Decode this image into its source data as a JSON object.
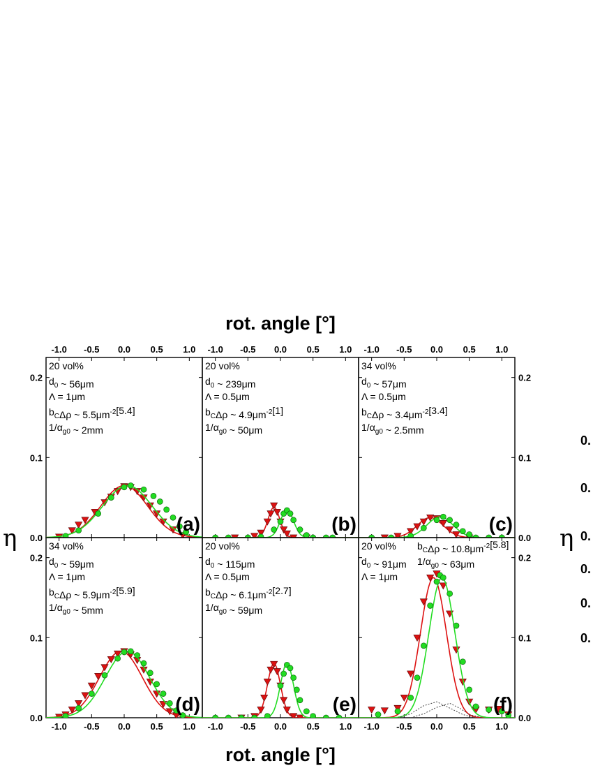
{
  "figure": {
    "top_xlabel": "rot. angle [°]",
    "bottom_xlabel": "rot. angle [°]",
    "left_ylabel": "η",
    "right_ylabel": "η",
    "cut_tick_labels": [
      "0.",
      "0.",
      "0.",
      "0.",
      "0.",
      "0."
    ]
  },
  "colors": {
    "red": "#dd1111",
    "green": "#22dd22",
    "frame": "#000000"
  },
  "chart_data": [
    {
      "id": "a",
      "type": "line",
      "panel_label": "(a)",
      "annotations": [
        "20 vol%",
        "d0 ~ 56μm",
        "Λ = 1μm",
        "bCΔρ ~ 5.5μm⁻²[5.4]",
        "1/αg0 ~ 2mm"
      ],
      "xlim": [
        -1.2,
        1.2
      ],
      "ylim": [
        0,
        0.225
      ],
      "x_ticks": [
        "-1.0",
        "-0.5",
        "0.0",
        "0.5",
        "1.0"
      ],
      "y_ticks": [
        "0.0",
        "0.1",
        "0.2"
      ],
      "series": [
        {
          "marker": "triangle",
          "color": "red",
          "points": [
            [
              -1.0,
              0.001
            ],
            [
              -0.8,
              0.009
            ],
            [
              -0.7,
              0.016
            ],
            [
              -0.6,
              0.022
            ],
            [
              -0.45,
              0.032
            ],
            [
              -0.3,
              0.044
            ],
            [
              -0.2,
              0.051
            ],
            [
              -0.1,
              0.058
            ],
            [
              0.0,
              0.064
            ],
            [
              0.1,
              0.063
            ],
            [
              0.2,
              0.058
            ],
            [
              0.3,
              0.05
            ],
            [
              0.4,
              0.04
            ],
            [
              0.5,
              0.03
            ],
            [
              0.6,
              0.02
            ],
            [
              0.75,
              0.01
            ],
            [
              0.9,
              0.003
            ]
          ],
          "fit": {
            "a": 0.065,
            "mu": 0.0,
            "sigma": 0.36
          }
        },
        {
          "marker": "circle",
          "color": "green",
          "points": [
            [
              -0.9,
              0.002
            ],
            [
              -0.7,
              0.009
            ],
            [
              -0.4,
              0.03
            ],
            [
              -0.2,
              0.05
            ],
            [
              0.0,
              0.063
            ],
            [
              0.1,
              0.065
            ],
            [
              0.3,
              0.06
            ],
            [
              0.45,
              0.052
            ],
            [
              0.55,
              0.045
            ],
            [
              0.65,
              0.035
            ],
            [
              0.75,
              0.025
            ],
            [
              0.85,
              0.014
            ],
            [
              0.95,
              0.007
            ]
          ],
          "fit": {
            "a": 0.065,
            "mu": 0.05,
            "sigma": 0.38
          }
        }
      ]
    },
    {
      "id": "b",
      "type": "line",
      "panel_label": "(b)",
      "annotations": [
        "20 vol%",
        "d0 ~ 239μm",
        "Λ = 0.5μm",
        "bCΔρ ~ 4.9μm⁻²[1]",
        "1/αg0 ~ 50μm"
      ],
      "xlim": [
        -1.2,
        1.2
      ],
      "ylim": [
        0,
        0.225
      ],
      "x_ticks": [
        "-1.0",
        "-0.5",
        "0.0",
        "0.5",
        "1.0"
      ],
      "y_ticks": [],
      "series": [
        {
          "marker": "triangle",
          "color": "red",
          "points": [
            [
              -0.7,
              0.0
            ],
            [
              -0.4,
              0.002
            ],
            [
              -0.3,
              0.006
            ],
            [
              -0.2,
              0.02
            ],
            [
              -0.15,
              0.03
            ],
            [
              -0.1,
              0.04
            ],
            [
              -0.05,
              0.032
            ],
            [
              0.0,
              0.02
            ],
            [
              0.05,
              0.01
            ],
            [
              0.1,
              0.005
            ],
            [
              0.2,
              0.0
            ],
            [
              0.4,
              0.0
            ]
          ],
          "fit": {
            "a": 0.038,
            "mu": -0.1,
            "sigma": 0.09
          }
        },
        {
          "marker": "circle",
          "color": "green",
          "points": [
            [
              -1.0,
              0.0
            ],
            [
              -0.8,
              0.0
            ],
            [
              -0.5,
              0.0
            ],
            [
              -0.3,
              0.001
            ],
            [
              -0.1,
              0.01
            ],
            [
              0.0,
              0.02
            ],
            [
              0.05,
              0.03
            ],
            [
              0.1,
              0.034
            ],
            [
              0.15,
              0.03
            ],
            [
              0.2,
              0.022
            ],
            [
              0.3,
              0.01
            ],
            [
              0.4,
              0.003
            ],
            [
              0.5,
              0.0
            ],
            [
              0.7,
              0.0
            ],
            [
              0.8,
              0.0
            ]
          ],
          "fit": {
            "a": 0.035,
            "mu": 0.1,
            "sigma": 0.1
          }
        }
      ]
    },
    {
      "id": "c",
      "type": "line",
      "panel_label": "(c)",
      "annotations": [
        "34 vol%",
        "d0 ~ 57μm",
        "Λ = 0.5μm",
        "bCΔρ ~ 3.4μm⁻²[3.4]",
        "1/αg0 ~ 2.5mm"
      ],
      "xlim": [
        -1.2,
        1.2
      ],
      "ylim": [
        0,
        0.225
      ],
      "x_ticks": [
        "-1.0",
        "-0.5",
        "0.0",
        "0.5",
        "1.0"
      ],
      "y_ticks": [
        "0.0",
        "0.1",
        "0.2"
      ],
      "series": [
        {
          "marker": "triangle",
          "color": "red",
          "points": [
            [
              -0.8,
              0.0
            ],
            [
              -0.6,
              0.002
            ],
            [
              -0.4,
              0.008
            ],
            [
              -0.3,
              0.014
            ],
            [
              -0.2,
              0.02
            ],
            [
              -0.1,
              0.025
            ],
            [
              0.0,
              0.024
            ],
            [
              0.1,
              0.018
            ],
            [
              0.2,
              0.01
            ],
            [
              0.3,
              0.004
            ],
            [
              0.5,
              0.0
            ]
          ],
          "fit": {
            "a": 0.025,
            "mu": -0.1,
            "sigma": 0.2
          }
        },
        {
          "marker": "circle",
          "color": "green",
          "points": [
            [
              -1.0,
              0.0
            ],
            [
              -0.7,
              0.0
            ],
            [
              -0.4,
              0.002
            ],
            [
              -0.2,
              0.012
            ],
            [
              0.0,
              0.022
            ],
            [
              0.1,
              0.026
            ],
            [
              0.2,
              0.022
            ],
            [
              0.3,
              0.016
            ],
            [
              0.4,
              0.008
            ],
            [
              0.5,
              0.004
            ],
            [
              0.6,
              0.0
            ],
            [
              0.8,
              0.0
            ],
            [
              1.0,
              0.0
            ]
          ],
          "fit": {
            "a": 0.026,
            "mu": 0.05,
            "sigma": 0.2
          }
        }
      ]
    },
    {
      "id": "d",
      "type": "line",
      "panel_label": "(d)",
      "annotations": [
        "34 vol%",
        "d0 ~ 59μm",
        "Λ = 1μm",
        "bCΔρ ~ 5.9μm⁻²[5.9]",
        "1/αg0 ~ 5mm"
      ],
      "xlim": [
        -1.2,
        1.2
      ],
      "ylim": [
        0,
        0.225
      ],
      "x_ticks": [
        "-1.0",
        "-0.5",
        "0.0",
        "0.5",
        "1.0"
      ],
      "y_ticks": [
        "0.0",
        "0.1",
        "0.2"
      ],
      "series": [
        {
          "marker": "triangle",
          "color": "red",
          "points": [
            [
              -1.0,
              0.001
            ],
            [
              -0.9,
              0.004
            ],
            [
              -0.8,
              0.01
            ],
            [
              -0.7,
              0.018
            ],
            [
              -0.6,
              0.028
            ],
            [
              -0.5,
              0.04
            ],
            [
              -0.4,
              0.052
            ],
            [
              -0.3,
              0.063
            ],
            [
              -0.2,
              0.073
            ],
            [
              -0.1,
              0.08
            ],
            [
              0.0,
              0.083
            ],
            [
              0.1,
              0.079
            ],
            [
              0.2,
              0.072
            ],
            [
              0.3,
              0.06
            ],
            [
              0.4,
              0.045
            ],
            [
              0.5,
              0.03
            ],
            [
              0.6,
              0.017
            ],
            [
              0.7,
              0.008
            ],
            [
              0.8,
              0.003
            ]
          ],
          "fit": {
            "a": 0.083,
            "mu": -0.05,
            "sigma": 0.33
          }
        },
        {
          "marker": "circle",
          "color": "green",
          "points": [
            [
              -0.9,
              0.002
            ],
            [
              -0.7,
              0.012
            ],
            [
              -0.5,
              0.03
            ],
            [
              -0.3,
              0.053
            ],
            [
              -0.1,
              0.074
            ],
            [
              0.0,
              0.082
            ],
            [
              0.1,
              0.083
            ],
            [
              0.2,
              0.078
            ],
            [
              0.3,
              0.068
            ],
            [
              0.4,
              0.056
            ],
            [
              0.5,
              0.042
            ],
            [
              0.6,
              0.03
            ],
            [
              0.7,
              0.018
            ],
            [
              0.8,
              0.009
            ],
            [
              0.9,
              0.003
            ]
          ],
          "fit": {
            "a": 0.083,
            "mu": 0.05,
            "sigma": 0.34
          }
        }
      ]
    },
    {
      "id": "e",
      "type": "line",
      "panel_label": "(e)",
      "annotations": [
        "20 vol%",
        "d0 ~ 115μm",
        "Λ = 0.5μm",
        "bCΔρ ~ 6.1μm⁻²[2.7]",
        "1/αg0 ~ 59μm"
      ],
      "xlim": [
        -1.2,
        1.2
      ],
      "ylim": [
        0,
        0.225
      ],
      "x_ticks": [
        "-1.0",
        "-0.5",
        "0.0",
        "0.5",
        "1.0"
      ],
      "y_ticks": [],
      "series": [
        {
          "marker": "triangle",
          "color": "red",
          "points": [
            [
              -0.6,
              0.0
            ],
            [
              -0.4,
              0.002
            ],
            [
              -0.3,
              0.01
            ],
            [
              -0.25,
              0.025
            ],
            [
              -0.2,
              0.045
            ],
            [
              -0.15,
              0.06
            ],
            [
              -0.1,
              0.067
            ],
            [
              -0.05,
              0.058
            ],
            [
              0.0,
              0.04
            ],
            [
              0.05,
              0.022
            ],
            [
              0.1,
              0.01
            ],
            [
              0.2,
              0.002
            ],
            [
              0.3,
              0.0
            ]
          ],
          "fit": {
            "a": 0.068,
            "mu": -0.1,
            "sigma": 0.1
          }
        },
        {
          "marker": "circle",
          "color": "green",
          "points": [
            [
              -1.0,
              0.0
            ],
            [
              -0.8,
              0.0
            ],
            [
              -0.6,
              0.0
            ],
            [
              -0.4,
              0.0
            ],
            [
              -0.2,
              0.002
            ],
            [
              0.0,
              0.04
            ],
            [
              0.05,
              0.055
            ],
            [
              0.1,
              0.066
            ],
            [
              0.15,
              0.062
            ],
            [
              0.2,
              0.05
            ],
            [
              0.25,
              0.035
            ],
            [
              0.3,
              0.022
            ],
            [
              0.4,
              0.008
            ],
            [
              0.5,
              0.002
            ],
            [
              0.7,
              0.0
            ],
            [
              0.9,
              0.0
            ]
          ],
          "fit": {
            "a": 0.068,
            "mu": 0.1,
            "sigma": 0.1
          }
        }
      ]
    },
    {
      "id": "f",
      "type": "line",
      "panel_label": "(f)",
      "annotations": [
        "20 vol%",
        "d0 ~ 91μm",
        "Λ = 1μm"
      ],
      "annotations_right": [
        "bCΔρ ~ 10.8μm⁻²[5.8]",
        "1/αg0 ~ 63μm"
      ],
      "xlim": [
        -1.2,
        1.2
      ],
      "ylim": [
        0,
        0.225
      ],
      "x_ticks": [
        "-1.0",
        "-0.5",
        "0.0",
        "0.5",
        "1.0"
      ],
      "y_ticks": [
        "0.0",
        "0.1",
        "0.2"
      ],
      "series": [
        {
          "marker": "triangle",
          "color": "red",
          "points": [
            [
              -1.0,
              0.01
            ],
            [
              -0.8,
              0.009
            ],
            [
              -0.6,
              0.012
            ],
            [
              -0.5,
              0.025
            ],
            [
              -0.4,
              0.055
            ],
            [
              -0.3,
              0.1
            ],
            [
              -0.2,
              0.145
            ],
            [
              -0.1,
              0.175
            ],
            [
              0.0,
              0.18
            ],
            [
              0.1,
              0.165
            ],
            [
              0.2,
              0.13
            ],
            [
              0.3,
              0.085
            ],
            [
              0.4,
              0.045
            ],
            [
              0.5,
              0.02
            ],
            [
              0.6,
              0.01
            ],
            [
              0.8,
              0.01
            ],
            [
              0.95,
              0.011
            ],
            [
              1.1,
              0.004
            ]
          ],
          "fit": {
            "a": 0.175,
            "mu": -0.05,
            "sigma": 0.2
          }
        },
        {
          "marker": "circle",
          "color": "green",
          "points": [
            [
              -0.9,
              0.004
            ],
            [
              -0.6,
              0.008
            ],
            [
              -0.4,
              0.025
            ],
            [
              -0.3,
              0.05
            ],
            [
              -0.2,
              0.09
            ],
            [
              -0.1,
              0.14
            ],
            [
              0.0,
              0.17
            ],
            [
              0.05,
              0.178
            ],
            [
              0.1,
              0.175
            ],
            [
              0.2,
              0.155
            ],
            [
              0.3,
              0.115
            ],
            [
              0.4,
              0.07
            ],
            [
              0.5,
              0.035
            ],
            [
              0.6,
              0.014
            ],
            [
              0.8,
              0.01
            ],
            [
              1.0,
              0.008
            ],
            [
              1.1,
              0.003
            ]
          ],
          "fit": {
            "a": 0.175,
            "mu": 0.08,
            "sigma": 0.2
          }
        },
        {
          "marker": "dotted",
          "color": "black",
          "points": [
            [
              -0.6,
              0.0
            ],
            [
              -0.4,
              0.005
            ],
            [
              -0.2,
              0.015
            ],
            [
              0.0,
              0.02
            ],
            [
              0.2,
              0.012
            ],
            [
              0.4,
              0.004
            ],
            [
              0.6,
              0.0
            ]
          ]
        },
        {
          "marker": "dotted",
          "color": "black",
          "points": [
            [
              -0.4,
              0.0
            ],
            [
              -0.2,
              0.005
            ],
            [
              0.0,
              0.013
            ],
            [
              0.2,
              0.018
            ],
            [
              0.35,
              0.012
            ],
            [
              0.5,
              0.004
            ],
            [
              0.7,
              0.0
            ]
          ]
        }
      ]
    }
  ]
}
